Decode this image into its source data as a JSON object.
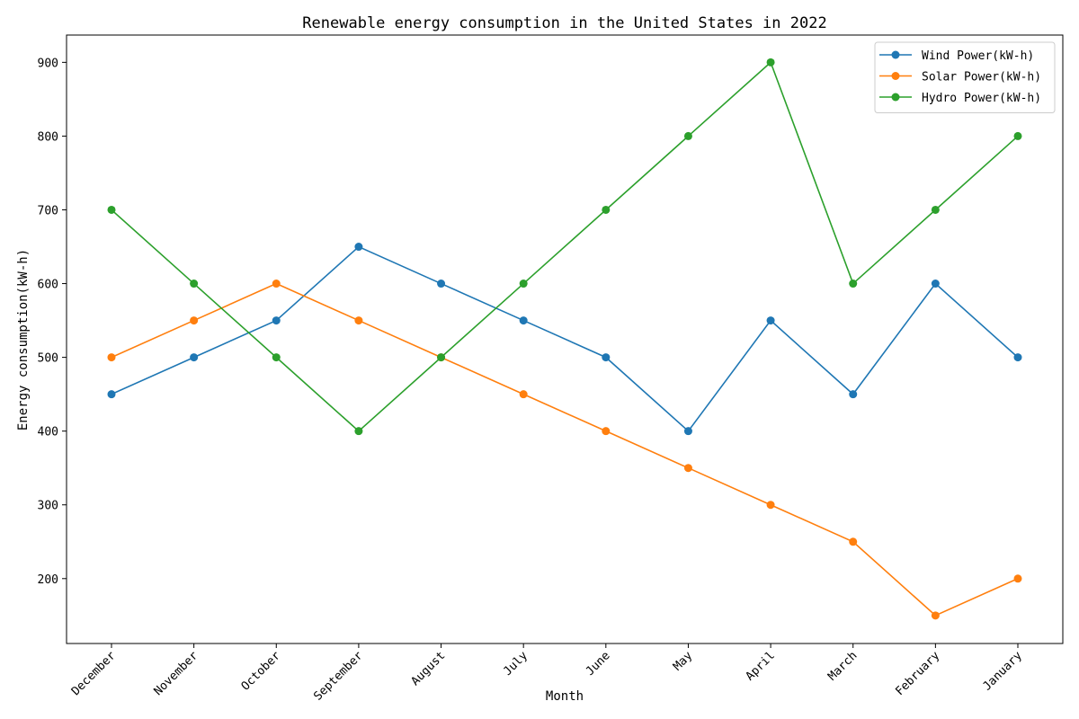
{
  "chart_data": {
    "type": "line",
    "title": "Renewable energy consumption in the United States in 2022",
    "xlabel": "Month",
    "ylabel": "Energy consumption(kW-h)",
    "categories": [
      "December",
      "November",
      "October",
      "September",
      "August",
      "July",
      "June",
      "May",
      "April",
      "March",
      "February",
      "January"
    ],
    "ylim": [
      112,
      937
    ],
    "yticks": [
      200,
      300,
      400,
      500,
      600,
      700,
      800,
      900
    ],
    "grid": false,
    "legend_position": "top-right",
    "series": [
      {
        "name": "Wind Power(kW-h)",
        "color": "#1f77b4",
        "values": [
          450,
          500,
          550,
          650,
          600,
          550,
          500,
          400,
          550,
          450,
          600,
          500
        ]
      },
      {
        "name": "Solar Power(kW-h)",
        "color": "#ff7f0e",
        "values": [
          500,
          550,
          600,
          550,
          500,
          450,
          400,
          350,
          300,
          250,
          150,
          200
        ]
      },
      {
        "name": "Hydro Power(kW-h)",
        "color": "#2ca02c",
        "values": [
          700,
          600,
          500,
          400,
          500,
          600,
          700,
          800,
          900,
          600,
          700,
          800
        ]
      }
    ]
  }
}
